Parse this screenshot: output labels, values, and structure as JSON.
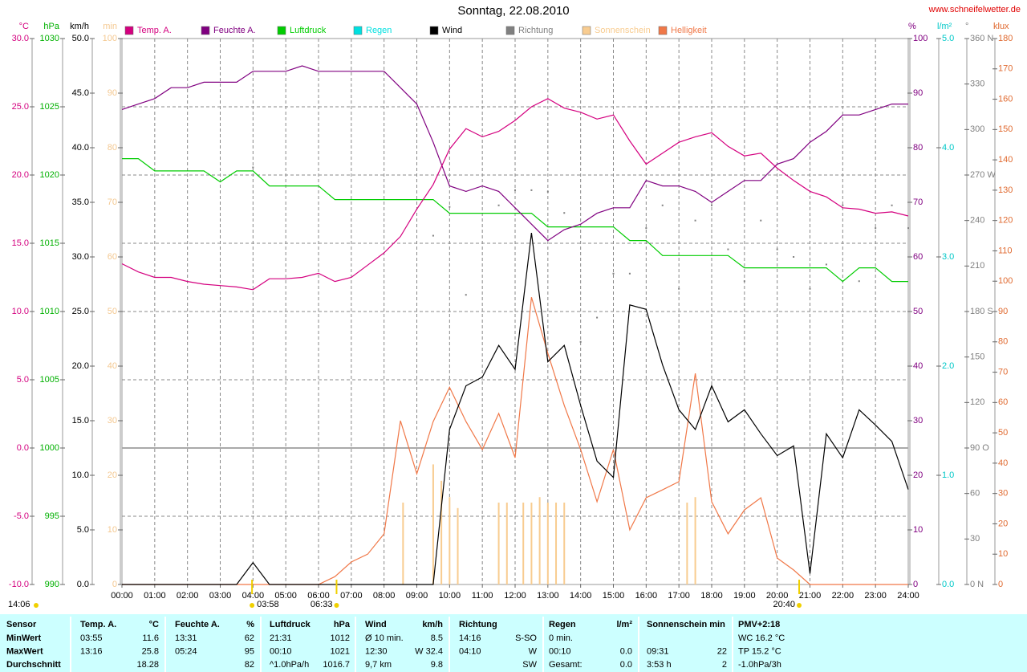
{
  "chart_data": {
    "type": "line",
    "title": "Sonntag, 22.08.2010",
    "site": "www.schneifelwetter.de",
    "grid": true,
    "xlim": [
      0,
      24
    ],
    "xticks": [
      {
        "value": 0,
        "label": "00:00"
      },
      {
        "value": 1,
        "label": "01:00"
      },
      {
        "value": 2,
        "label": "02:00"
      },
      {
        "value": 3,
        "label": "03:00"
      },
      {
        "value": 4,
        "label": "04:00"
      },
      {
        "value": 5,
        "label": "05:00"
      },
      {
        "value": 6,
        "label": "06:00"
      },
      {
        "value": 7,
        "label": "07:00"
      },
      {
        "value": 8,
        "label": "08:00"
      },
      {
        "value": 9,
        "label": "09:00"
      },
      {
        "value": 10,
        "label": "10:00"
      },
      {
        "value": 11,
        "label": "11:00"
      },
      {
        "value": 12,
        "label": "12:00"
      },
      {
        "value": 13,
        "label": "13:00"
      },
      {
        "value": 14,
        "label": "14:00"
      },
      {
        "value": 15,
        "label": "15:00"
      },
      {
        "value": 16,
        "label": "16:00"
      },
      {
        "value": 17,
        "label": "17:00"
      },
      {
        "value": 18,
        "label": "18:00"
      },
      {
        "value": 19,
        "label": "19:00"
      },
      {
        "value": 20,
        "label": "20:00"
      },
      {
        "value": 21,
        "label": "21:00"
      },
      {
        "value": 22,
        "label": "22:00"
      },
      {
        "value": 23,
        "label": "23:00"
      },
      {
        "value": 24,
        "label": "24:00"
      }
    ],
    "axes": [
      {
        "unit": "°C",
        "side": "left",
        "color": "#d4007f",
        "lim": [
          -10,
          30
        ],
        "ticks": [
          {
            "value": -10,
            "label": "-10.0"
          },
          {
            "value": -5,
            "label": "-5.0"
          },
          {
            "value": 0,
            "label": "0.0"
          },
          {
            "value": 5,
            "label": "5.0"
          },
          {
            "value": 10,
            "label": "10.0"
          },
          {
            "value": 15,
            "label": "15.0"
          },
          {
            "value": 20,
            "label": "20.0"
          },
          {
            "value": 25,
            "label": "25.0"
          },
          {
            "value": 30,
            "label": "30.0"
          }
        ]
      },
      {
        "unit": "hPa",
        "side": "left",
        "color": "#00b000",
        "lim": [
          990,
          1030
        ],
        "ticks": [
          990,
          995,
          1000,
          1005,
          1010,
          1015,
          1020,
          1025,
          1030
        ]
      },
      {
        "unit": "km/h",
        "side": "left",
        "color": "#000000",
        "lim": [
          0,
          50
        ],
        "ticks": [
          {
            "value": 0,
            "label": "0.0"
          },
          {
            "value": 5,
            "label": "5.0"
          },
          {
            "value": 10,
            "label": "10.0"
          },
          {
            "value": 15,
            "label": "15.0"
          },
          {
            "value": 20,
            "label": "20.0"
          },
          {
            "value": 25,
            "label": "25.0"
          },
          {
            "value": 30,
            "label": "30.0"
          },
          {
            "value": 35,
            "label": "35.0"
          },
          {
            "value": 40,
            "label": "40.0"
          },
          {
            "value": 45,
            "label": "45.0"
          },
          {
            "value": 50,
            "label": "50.0"
          }
        ]
      },
      {
        "unit": "min",
        "side": "left",
        "color": "#f4c890",
        "lim": [
          0,
          100
        ],
        "ticks": [
          0,
          10,
          20,
          30,
          40,
          50,
          60,
          70,
          80,
          90,
          100
        ]
      },
      {
        "unit": "%",
        "side": "right",
        "color": "#800080",
        "lim": [
          0,
          100
        ],
        "ticks": [
          0,
          10,
          20,
          30,
          40,
          50,
          60,
          70,
          80,
          90,
          100
        ]
      },
      {
        "unit": "l/m²",
        "side": "right",
        "color": "#00c8c8",
        "lim": [
          0,
          5
        ],
        "ticks": [
          {
            "value": 0,
            "label": "0.0"
          },
          {
            "value": 1,
            "label": "1.0"
          },
          {
            "value": 2,
            "label": "2.0"
          },
          {
            "value": 3,
            "label": "3.0"
          },
          {
            "value": 4,
            "label": "4.0"
          },
          {
            "value": 5,
            "label": "5.0"
          }
        ]
      },
      {
        "unit": "°",
        "side": "right",
        "color": "#808080",
        "lim": [
          0,
          360
        ],
        "ticks": [
          {
            "value": 0,
            "label": "0 N"
          },
          30,
          60,
          {
            "value": 90,
            "label": "90 O"
          },
          120,
          150,
          {
            "value": 180,
            "label": "180 S"
          },
          210,
          240,
          {
            "value": 270,
            "label": "270 W"
          },
          300,
          330,
          {
            "value": 360,
            "label": "360 N"
          }
        ]
      },
      {
        "unit": "klux",
        "side": "right",
        "color": "#e06a30",
        "lim": [
          0,
          180
        ],
        "ticks": [
          0,
          10,
          20,
          30,
          40,
          50,
          60,
          70,
          80,
          90,
          100,
          110,
          120,
          130,
          140,
          150,
          160,
          170,
          180
        ]
      }
    ],
    "x": [
      0,
      0.5,
      1,
      1.5,
      2,
      2.5,
      3,
      3.5,
      4,
      4.5,
      5,
      5.5,
      6,
      6.5,
      7,
      7.5,
      8,
      8.5,
      9,
      9.5,
      10,
      10.5,
      11,
      11.5,
      12,
      12.5,
      13,
      13.5,
      14,
      14.5,
      15,
      15.5,
      16,
      16.5,
      17,
      17.5,
      18,
      18.5,
      19,
      19.5,
      20,
      20.5,
      21,
      21.5,
      22,
      22.5,
      23,
      23.5,
      24
    ],
    "series": [
      {
        "name": "Temp. A.",
        "color": "#d4007f",
        "axis": "°C",
        "values": [
          13.5,
          12.9,
          12.5,
          12.5,
          12.2,
          12.0,
          11.9,
          11.8,
          11.6,
          12.4,
          12.4,
          12.5,
          12.8,
          12.2,
          12.5,
          13.4,
          14.3,
          15.5,
          17.5,
          19.3,
          21.9,
          23.4,
          22.8,
          23.2,
          24.0,
          25.0,
          25.6,
          24.9,
          24.6,
          24.1,
          24.4,
          22.5,
          20.8,
          21.6,
          22.4,
          22.8,
          23.1,
          22.1,
          21.4,
          21.6,
          20.5,
          19.6,
          18.8,
          18.4,
          17.6,
          17.5,
          17.2,
          17.3,
          17.0
        ]
      },
      {
        "name": "Feuchte A.",
        "color": "#800080",
        "axis": "%",
        "values": [
          87,
          88,
          89,
          91,
          91,
          92,
          92,
          92,
          94,
          94,
          94,
          95,
          94,
          94,
          94,
          94,
          94,
          91,
          88,
          81,
          73,
          72,
          73,
          72,
          69,
          66,
          63,
          65,
          66,
          68,
          69,
          69,
          74,
          73,
          73,
          72,
          70,
          72,
          74,
          74,
          77,
          78,
          81,
          83,
          86,
          86,
          87,
          88,
          88
        ]
      },
      {
        "name": "Luftdruck",
        "color": "#00cc00",
        "axis": "hPa",
        "values": [
          1021.2,
          1021.2,
          1020.3,
          1020.3,
          1020.3,
          1020.3,
          1019.5,
          1020.3,
          1020.3,
          1019.2,
          1019.2,
          1019.2,
          1019.2,
          1018.2,
          1018.2,
          1018.2,
          1018.2,
          1018.2,
          1018.2,
          1018.2,
          1017.2,
          1017.2,
          1017.2,
          1017.2,
          1017.2,
          1017.2,
          1016.2,
          1016.2,
          1016.2,
          1016.2,
          1016.2,
          1015.2,
          1015.2,
          1014.1,
          1014.1,
          1014.1,
          1014.1,
          1014.1,
          1013.2,
          1013.2,
          1013.2,
          1013.2,
          1013.2,
          1013.2,
          1012.2,
          1013.2,
          1013.2,
          1012.2,
          1012.2
        ]
      },
      {
        "name": "Regen",
        "color": "#00e0e0",
        "axis": "l/m²"
      },
      {
        "name": "Wind",
        "color": "#000000",
        "axis": "km/h",
        "values": [
          0,
          0,
          0,
          0,
          0,
          0,
          0,
          0,
          2,
          0,
          0,
          0,
          0,
          0,
          0,
          0,
          0,
          0,
          0,
          0,
          14.2,
          18.2,
          19,
          21.9,
          19.7,
          32.2,
          20.4,
          21.9,
          16.4,
          11.3,
          9.8,
          25.6,
          25.2,
          20.1,
          16,
          14.2,
          18.2,
          14.9,
          16,
          13.8,
          11.8,
          12.7,
          1,
          13.8,
          11.6,
          16,
          14.6,
          13.1,
          8.7
        ]
      },
      {
        "name": "Richtung",
        "color": "#808080",
        "axis": "°",
        "style": "dots",
        "values": [
          null,
          null,
          null,
          null,
          null,
          null,
          null,
          null,
          275,
          null,
          null,
          null,
          null,
          null,
          null,
          null,
          null,
          null,
          null,
          230,
          249,
          191,
          null,
          250,
          260,
          260,
          259,
          245,
          160,
          176,
          205,
          205,
          235,
          250,
          195,
          240,
          250,
          221,
          200,
          240,
          221,
          216,
          195,
          211,
          250,
          200,
          235,
          250,
          235
        ]
      },
      {
        "name": "Sonnenschein",
        "color": "#f8cc90",
        "axis": "min",
        "style": "bars",
        "x": [
          8.58,
          9.5,
          9.75,
          10.0,
          10.25,
          11.5,
          11.75,
          12.25,
          12.5,
          12.75,
          13.0,
          13.25,
          13.5,
          17.25,
          17.5
        ],
        "values": [
          15,
          22,
          19,
          16,
          14,
          15,
          15,
          15,
          15,
          16,
          15,
          15,
          15,
          15,
          16
        ]
      },
      {
        "name": "Helligkeit",
        "color": "#f07848",
        "axis": "klux",
        "values": [
          0,
          0,
          0,
          0,
          0,
          0,
          0,
          0,
          0,
          0,
          0,
          0,
          0,
          2.6,
          7.4,
          10,
          16.7,
          54,
          36.5,
          53.7,
          65,
          53.7,
          44.5,
          56.4,
          41.8,
          94.7,
          76.2,
          59,
          44.5,
          27.3,
          44.5,
          18,
          28.6,
          31.2,
          33.9,
          69.6,
          27.3,
          16.7,
          24.6,
          28.6,
          8.7,
          4.8,
          0,
          0,
          0,
          0,
          0,
          0,
          0
        ]
      }
    ],
    "annotations": [
      {
        "text": "14:06"
      },
      {
        "text": "03:58",
        "x": 3.97
      },
      {
        "text": "06:33",
        "x": 6.55
      },
      {
        "text": "20:40",
        "x": 20.67
      }
    ]
  },
  "table": {
    "header": [
      "Sensor",
      "Temp. A.",
      "°C",
      "Feuchte A.",
      "%",
      "Luftdruck",
      "hPa",
      "Wind",
      "km/h",
      "Richtung",
      null,
      "Regen",
      "l/m²",
      "Sonnenschein min",
      null,
      "PMV+2:18"
    ],
    "rows": [
      [
        "MinWert",
        "03:55",
        "11.6",
        "13:31",
        "62",
        "21:31",
        "1012",
        "Ø 10 min.",
        "8.5",
        "14:16",
        "S-SO",
        "0 min.",
        null,
        null,
        null,
        "WC 16.2 °C"
      ],
      [
        "MaxWert",
        "13:16",
        "25.8",
        "05:24",
        "95",
        "00:10",
        "1021",
        "12:30",
        "W 32.4",
        "04:10",
        "W",
        "00:10",
        "0.0",
        "09:31",
        "22",
        "TP 15.2 °C"
      ],
      [
        "Durchschnitt",
        null,
        "18.28",
        null,
        "82",
        "^1.0hPa/h",
        "1016.7",
        "9,7 km",
        "9.8",
        null,
        "SW",
        "Gesamt:",
        "0.0",
        "3:53 h",
        "2",
        "-1.0hPa/3h"
      ]
    ]
  }
}
